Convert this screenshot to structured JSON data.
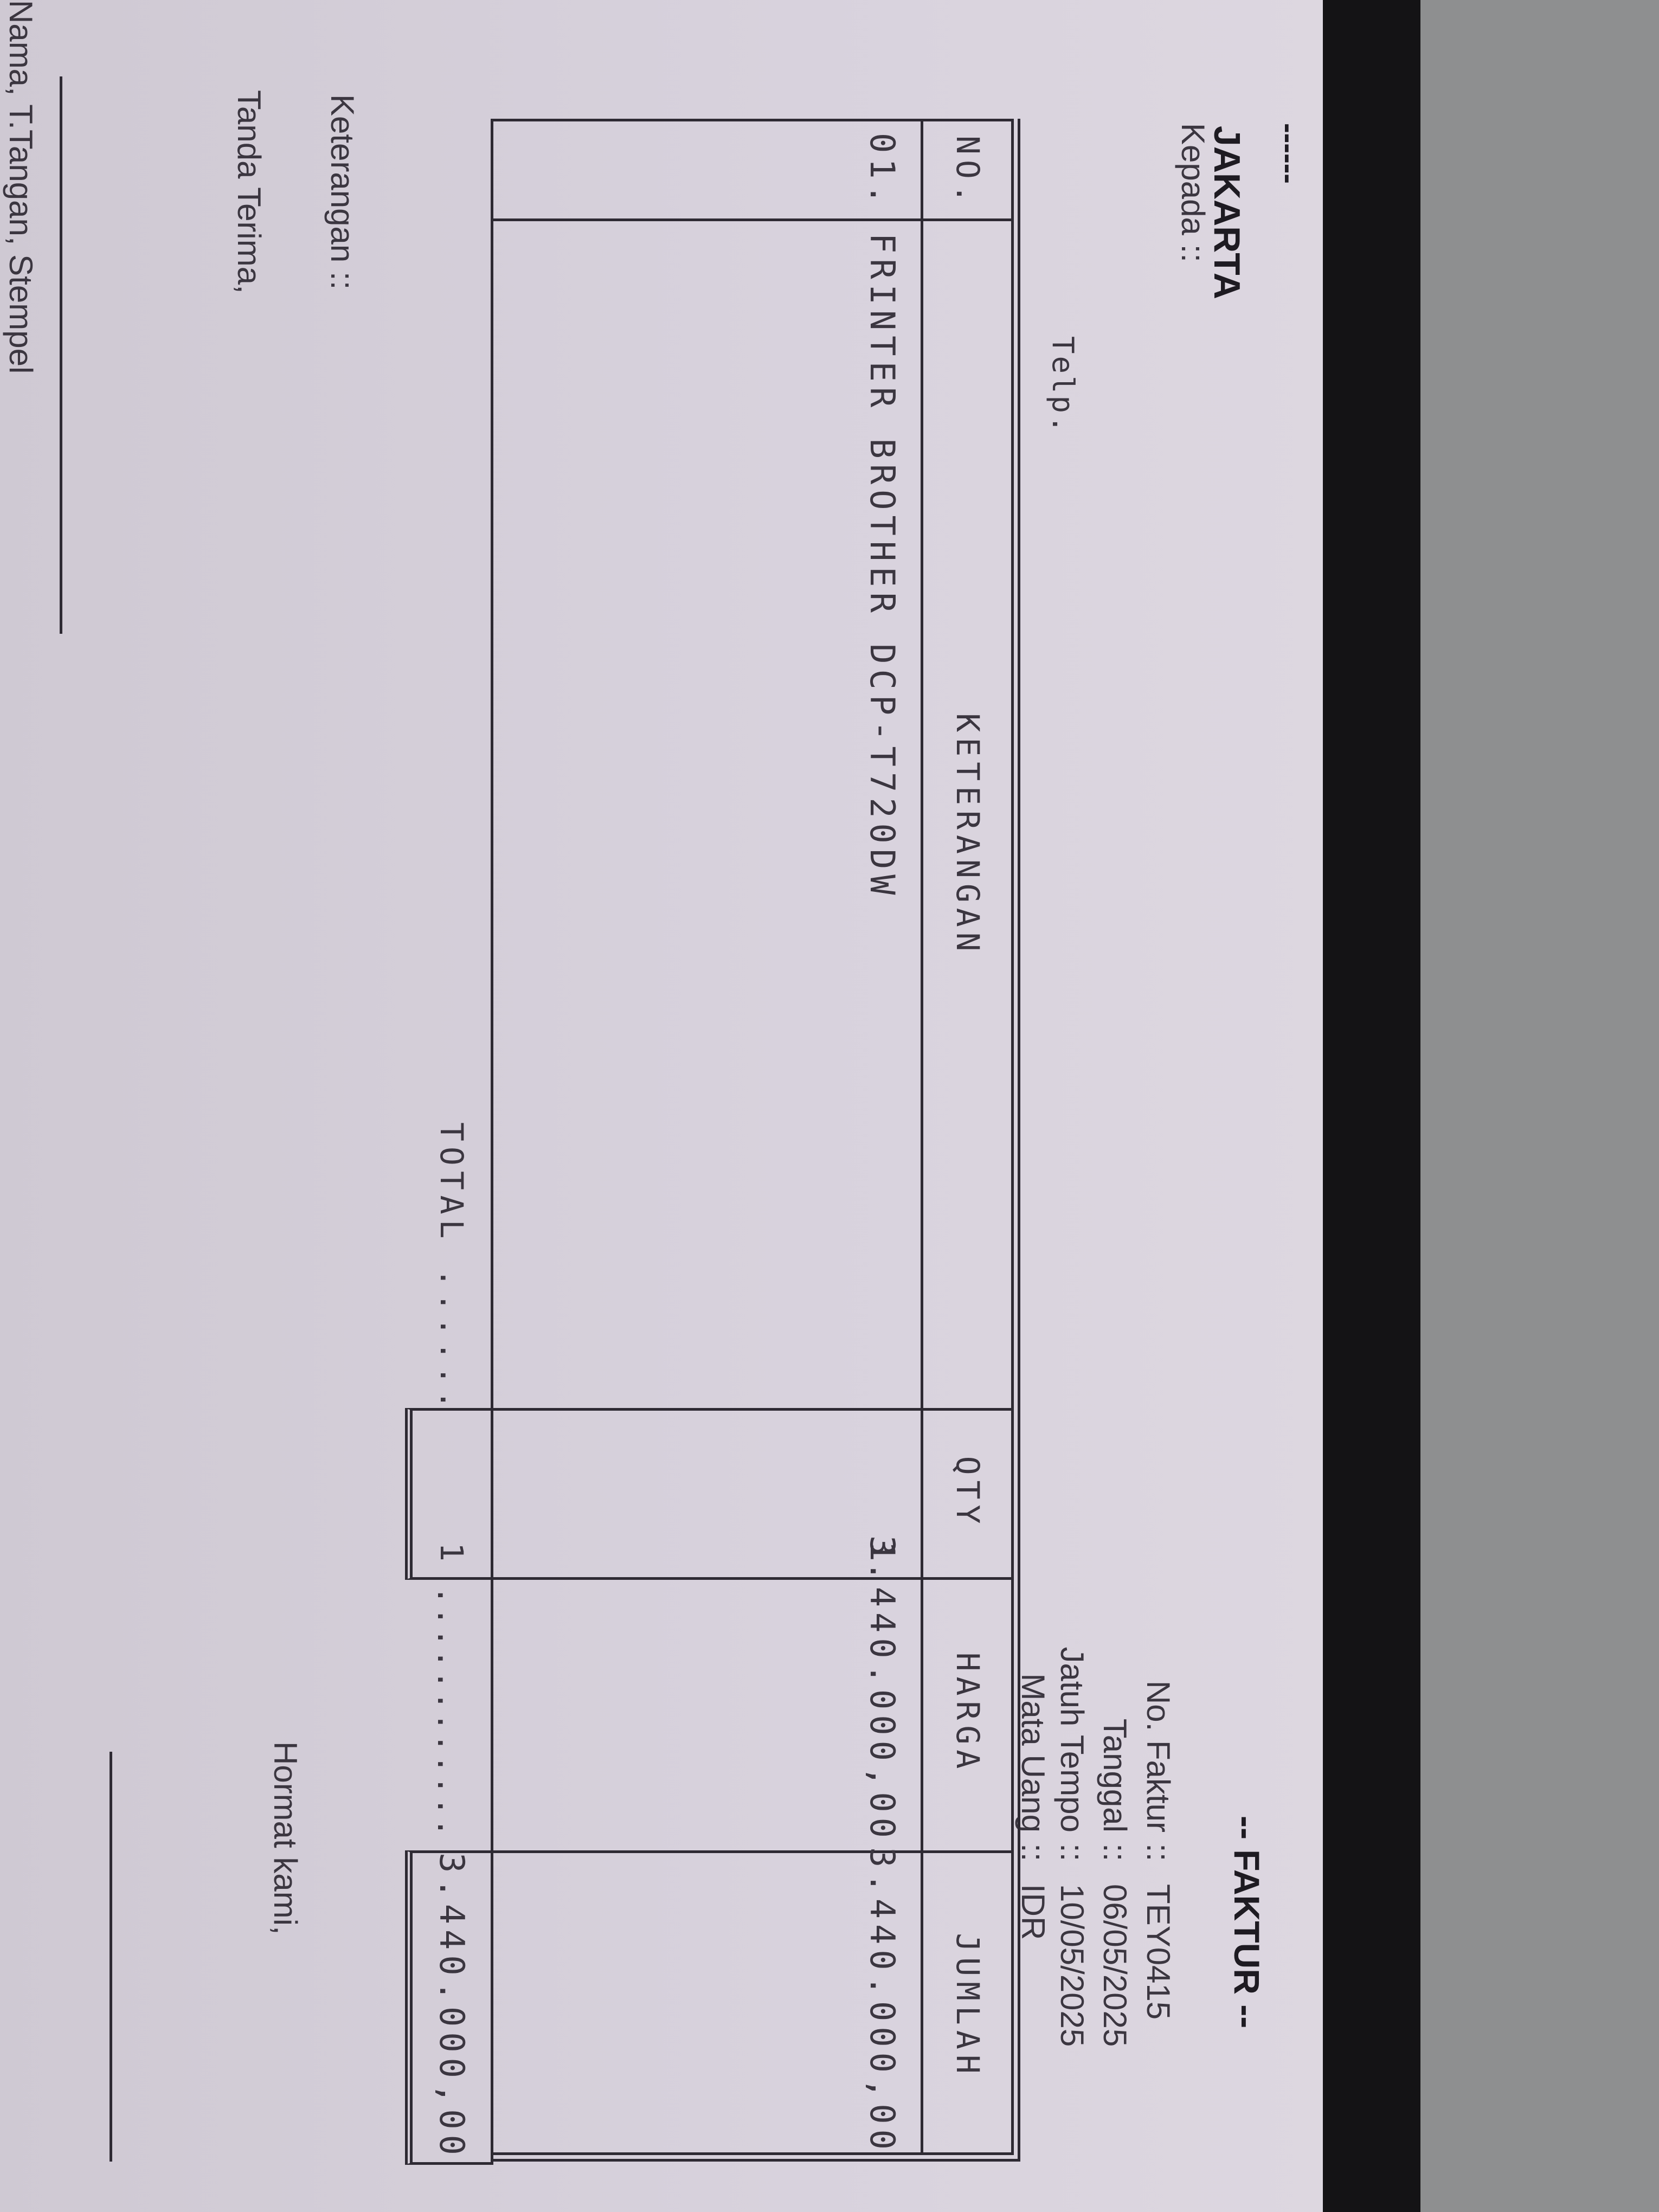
{
  "header": {
    "dash": "------",
    "company_city": "JAKARTA",
    "to_label": "Kepada ::",
    "phone_label": "Telp.",
    "title": "-- FAKTUR --"
  },
  "invoice_info": [
    {
      "label": "No. Faktur",
      "sep": "::",
      "value": "TEY0415"
    },
    {
      "label": "Tanggal",
      "sep": "::",
      "value": "06/05/2025"
    },
    {
      "label": "Jatuh Tempo",
      "sep": "::",
      "value": "10/05/2025"
    },
    {
      "label": "Mata Uang",
      "sep": "::",
      "value": "IDR"
    }
  ],
  "table": {
    "columns": [
      "NO.",
      "KETERANGAN",
      "QTY",
      "HARGA",
      "JUMLAH"
    ],
    "rows": [
      {
        "no": "01.",
        "description": "FRINTER BROTHER DCP-T720DW",
        "qty": "1",
        "price": "3.440.000,00",
        "amount": "3.440.000,00"
      }
    ],
    "total_label": "TOTAL ......",
    "total_qty": "1",
    "total_leader": "............",
    "total_amount": "3.440.000,00"
  },
  "footer": {
    "notes_label": "Keterangan ::",
    "received_label": "Tanda Terima,",
    "regards_label": "Hormat kami,",
    "signature_caption": "Nama, T.Tangan, Stempel"
  }
}
